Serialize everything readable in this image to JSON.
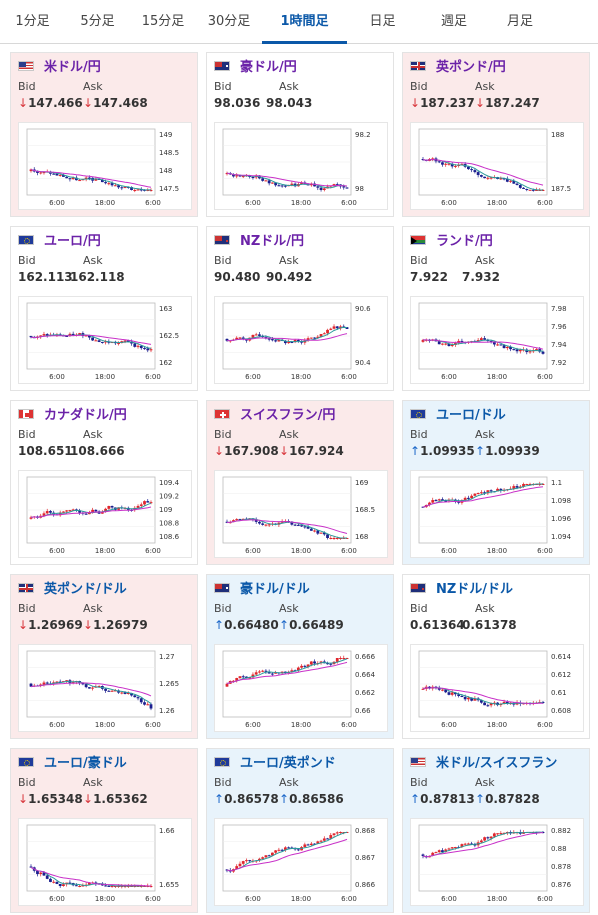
{
  "tabs": [
    {
      "label": "1分足",
      "active": false
    },
    {
      "label": "5分足",
      "active": false
    },
    {
      "label": "15分足",
      "active": false
    },
    {
      "label": "30分足",
      "active": false
    },
    {
      "label": "1時間足",
      "active": true
    },
    {
      "label": "日足",
      "active": false
    },
    {
      "label": "週足",
      "active": false
    },
    {
      "label": "月足",
      "active": false
    }
  ],
  "bid_label": "Bid",
  "ask_label": "Ask",
  "colors": {
    "up_candle": "#e0262d",
    "down_candle": "#1b1f8f",
    "ma_fast": "#2a9b9b",
    "ma_slow": "#c830c8",
    "down_bg": "#fbeaea",
    "up_bg": "#e8f3fb"
  },
  "cards": [
    {
      "pair": "米ドル/円",
      "flag": "US",
      "trend": "down",
      "bid_arrow": "↓",
      "ask_arrow": "↓",
      "bid": "147.466",
      "ask": "147.468",
      "chart": {
        "y_ticks": [
          "149",
          "148.5",
          "148",
          "147.5"
        ],
        "x_ticks": [
          "6:00",
          "18:00",
          "6:00"
        ]
      }
    },
    {
      "pair": "豪ドル/円",
      "flag": "AU",
      "trend": "flat",
      "bid_arrow": "",
      "ask_arrow": "",
      "bid": "98.036",
      "ask": "98.043",
      "chart": {
        "y_ticks": [
          "98.2",
          "98"
        ],
        "x_ticks": [
          "6:00",
          "18:00",
          "6:00"
        ]
      }
    },
    {
      "pair": "英ポンド/円",
      "flag": "GB",
      "trend": "down",
      "bid_arrow": "↓",
      "ask_arrow": "↓",
      "bid": "187.237",
      "ask": "187.247",
      "chart": {
        "y_ticks": [
          "188",
          "187.5"
        ],
        "x_ticks": [
          "6:00",
          "18:00",
          "6:00"
        ]
      }
    },
    {
      "pair": "ユーロ/円",
      "flag": "EU",
      "trend": "flat",
      "bid_arrow": "",
      "ask_arrow": "",
      "bid": "162.113",
      "ask": "162.118",
      "chart": {
        "y_ticks": [
          "163",
          "162.5",
          "162"
        ],
        "x_ticks": [
          "6:00",
          "18:00",
          "6:00"
        ]
      }
    },
    {
      "pair": "NZドル/円",
      "flag": "NZ",
      "trend": "flat",
      "bid_arrow": "",
      "ask_arrow": "",
      "bid": "90.480",
      "ask": "90.492",
      "chart": {
        "y_ticks": [
          "90.6",
          "90.4"
        ],
        "x_ticks": [
          "6:00",
          "18:00",
          "6:00"
        ]
      }
    },
    {
      "pair": "ランド/円",
      "flag": "ZA",
      "trend": "flat",
      "bid_arrow": "",
      "ask_arrow": "",
      "bid": "7.922",
      "ask": "7.932",
      "chart": {
        "y_ticks": [
          "7.98",
          "7.96",
          "7.94",
          "7.92"
        ],
        "x_ticks": [
          "6:00",
          "18:00",
          "6:00"
        ]
      }
    },
    {
      "pair": "カナダドル/円",
      "flag": "CA",
      "trend": "flat",
      "bid_arrow": "",
      "ask_arrow": "",
      "bid": "108.651",
      "ask": "108.666",
      "chart": {
        "y_ticks": [
          "109.4",
          "109.2",
          "109",
          "108.8",
          "108.6"
        ],
        "x_ticks": [
          "6:00",
          "18:00",
          "6:00"
        ]
      }
    },
    {
      "pair": "スイスフラン/円",
      "flag": "CH",
      "trend": "down",
      "bid_arrow": "↓",
      "ask_arrow": "↓",
      "bid": "167.908",
      "ask": "167.924",
      "chart": {
        "y_ticks": [
          "169",
          "168.5",
          "168"
        ],
        "x_ticks": [
          "6:00",
          "18:00",
          "6:00"
        ]
      }
    },
    {
      "pair": "ユーロ/ドル",
      "flag": "EU",
      "trend": "up",
      "bid_arrow": "↑",
      "ask_arrow": "↑",
      "bid": "1.09935",
      "ask": "1.09939",
      "chart": {
        "y_ticks": [
          "1.1",
          "1.098",
          "1.096",
          "1.094"
        ],
        "x_ticks": [
          "6:00",
          "18:00",
          "6:00"
        ]
      }
    },
    {
      "pair": "英ポンド/ドル",
      "flag": "GB",
      "trend": "down",
      "bid_arrow": "↓",
      "ask_arrow": "↓",
      "bid": "1.26969",
      "ask": "1.26979",
      "chart": {
        "y_ticks": [
          "1.27",
          "1.265",
          "1.26"
        ],
        "x_ticks": [
          "6:00",
          "18:00",
          "6:00"
        ]
      }
    },
    {
      "pair": "豪ドル/ドル",
      "flag": "AU",
      "trend": "up",
      "bid_arrow": "↑",
      "ask_arrow": "↑",
      "bid": "0.66480",
      "ask": "0.66489",
      "chart": {
        "y_ticks": [
          "0.666",
          "0.664",
          "0.662",
          "0.66"
        ],
        "x_ticks": [
          "6:00",
          "18:00",
          "6:00"
        ]
      }
    },
    {
      "pair": "NZドル/ドル",
      "flag": "NZ",
      "trend": "flat",
      "bid_arrow": "",
      "ask_arrow": "",
      "bid": "0.61364",
      "ask": "0.61378",
      "chart": {
        "y_ticks": [
          "0.614",
          "0.612",
          "0.61",
          "0.608"
        ],
        "x_ticks": [
          "6:00",
          "18:00",
          "6:00"
        ]
      }
    },
    {
      "pair": "ユーロ/豪ドル",
      "flag": "EU",
      "trend": "down",
      "bid_arrow": "↓",
      "ask_arrow": "↓",
      "bid": "1.65348",
      "ask": "1.65362",
      "chart": {
        "y_ticks": [
          "1.66",
          "1.655"
        ],
        "x_ticks": [
          "6:00",
          "18:00",
          "6:00"
        ]
      }
    },
    {
      "pair": "ユーロ/英ポンド",
      "flag": "EU",
      "trend": "up",
      "bid_arrow": "↑",
      "ask_arrow": "↑",
      "bid": "0.86578",
      "ask": "0.86586",
      "chart": {
        "y_ticks": [
          "0.868",
          "0.867",
          "0.866"
        ],
        "x_ticks": [
          "6:00",
          "18:00",
          "6:00"
        ]
      }
    },
    {
      "pair": "米ドル/スイスフラン",
      "flag": "US",
      "trend": "up",
      "bid_arrow": "↑",
      "ask_arrow": "↑",
      "bid": "0.87813",
      "ask": "0.87828",
      "chart": {
        "y_ticks": [
          "0.882",
          "0.88",
          "0.878",
          "0.876"
        ],
        "x_ticks": [
          "6:00",
          "18:00",
          "6:00"
        ]
      }
    }
  ]
}
